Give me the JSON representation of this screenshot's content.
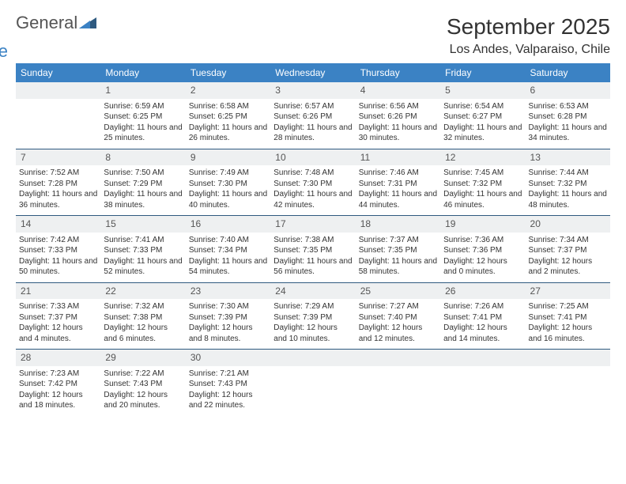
{
  "brand": {
    "part1": "General",
    "part2": "Blue",
    "tri_color": "#2f5a80"
  },
  "title": "September 2025",
  "location": "Los Andes, Valparaiso, Chile",
  "colors": {
    "header_bg": "#3b82c4",
    "header_fg": "#ffffff",
    "daynum_bg": "#eef0f1",
    "rule": "#2f5a80",
    "text": "#333333"
  },
  "day_headers": [
    "Sunday",
    "Monday",
    "Tuesday",
    "Wednesday",
    "Thursday",
    "Friday",
    "Saturday"
  ],
  "weeks": [
    [
      null,
      {
        "n": "1",
        "sr": "Sunrise: 6:59 AM",
        "ss": "Sunset: 6:25 PM",
        "dl": "Daylight: 11 hours and 25 minutes."
      },
      {
        "n": "2",
        "sr": "Sunrise: 6:58 AM",
        "ss": "Sunset: 6:25 PM",
        "dl": "Daylight: 11 hours and 26 minutes."
      },
      {
        "n": "3",
        "sr": "Sunrise: 6:57 AM",
        "ss": "Sunset: 6:26 PM",
        "dl": "Daylight: 11 hours and 28 minutes."
      },
      {
        "n": "4",
        "sr": "Sunrise: 6:56 AM",
        "ss": "Sunset: 6:26 PM",
        "dl": "Daylight: 11 hours and 30 minutes."
      },
      {
        "n": "5",
        "sr": "Sunrise: 6:54 AM",
        "ss": "Sunset: 6:27 PM",
        "dl": "Daylight: 11 hours and 32 minutes."
      },
      {
        "n": "6",
        "sr": "Sunrise: 6:53 AM",
        "ss": "Sunset: 6:28 PM",
        "dl": "Daylight: 11 hours and 34 minutes."
      }
    ],
    [
      {
        "n": "7",
        "sr": "Sunrise: 7:52 AM",
        "ss": "Sunset: 7:28 PM",
        "dl": "Daylight: 11 hours and 36 minutes."
      },
      {
        "n": "8",
        "sr": "Sunrise: 7:50 AM",
        "ss": "Sunset: 7:29 PM",
        "dl": "Daylight: 11 hours and 38 minutes."
      },
      {
        "n": "9",
        "sr": "Sunrise: 7:49 AM",
        "ss": "Sunset: 7:30 PM",
        "dl": "Daylight: 11 hours and 40 minutes."
      },
      {
        "n": "10",
        "sr": "Sunrise: 7:48 AM",
        "ss": "Sunset: 7:30 PM",
        "dl": "Daylight: 11 hours and 42 minutes."
      },
      {
        "n": "11",
        "sr": "Sunrise: 7:46 AM",
        "ss": "Sunset: 7:31 PM",
        "dl": "Daylight: 11 hours and 44 minutes."
      },
      {
        "n": "12",
        "sr": "Sunrise: 7:45 AM",
        "ss": "Sunset: 7:32 PM",
        "dl": "Daylight: 11 hours and 46 minutes."
      },
      {
        "n": "13",
        "sr": "Sunrise: 7:44 AM",
        "ss": "Sunset: 7:32 PM",
        "dl": "Daylight: 11 hours and 48 minutes."
      }
    ],
    [
      {
        "n": "14",
        "sr": "Sunrise: 7:42 AM",
        "ss": "Sunset: 7:33 PM",
        "dl": "Daylight: 11 hours and 50 minutes."
      },
      {
        "n": "15",
        "sr": "Sunrise: 7:41 AM",
        "ss": "Sunset: 7:33 PM",
        "dl": "Daylight: 11 hours and 52 minutes."
      },
      {
        "n": "16",
        "sr": "Sunrise: 7:40 AM",
        "ss": "Sunset: 7:34 PM",
        "dl": "Daylight: 11 hours and 54 minutes."
      },
      {
        "n": "17",
        "sr": "Sunrise: 7:38 AM",
        "ss": "Sunset: 7:35 PM",
        "dl": "Daylight: 11 hours and 56 minutes."
      },
      {
        "n": "18",
        "sr": "Sunrise: 7:37 AM",
        "ss": "Sunset: 7:35 PM",
        "dl": "Daylight: 11 hours and 58 minutes."
      },
      {
        "n": "19",
        "sr": "Sunrise: 7:36 AM",
        "ss": "Sunset: 7:36 PM",
        "dl": "Daylight: 12 hours and 0 minutes."
      },
      {
        "n": "20",
        "sr": "Sunrise: 7:34 AM",
        "ss": "Sunset: 7:37 PM",
        "dl": "Daylight: 12 hours and 2 minutes."
      }
    ],
    [
      {
        "n": "21",
        "sr": "Sunrise: 7:33 AM",
        "ss": "Sunset: 7:37 PM",
        "dl": "Daylight: 12 hours and 4 minutes."
      },
      {
        "n": "22",
        "sr": "Sunrise: 7:32 AM",
        "ss": "Sunset: 7:38 PM",
        "dl": "Daylight: 12 hours and 6 minutes."
      },
      {
        "n": "23",
        "sr": "Sunrise: 7:30 AM",
        "ss": "Sunset: 7:39 PM",
        "dl": "Daylight: 12 hours and 8 minutes."
      },
      {
        "n": "24",
        "sr": "Sunrise: 7:29 AM",
        "ss": "Sunset: 7:39 PM",
        "dl": "Daylight: 12 hours and 10 minutes."
      },
      {
        "n": "25",
        "sr": "Sunrise: 7:27 AM",
        "ss": "Sunset: 7:40 PM",
        "dl": "Daylight: 12 hours and 12 minutes."
      },
      {
        "n": "26",
        "sr": "Sunrise: 7:26 AM",
        "ss": "Sunset: 7:41 PM",
        "dl": "Daylight: 12 hours and 14 minutes."
      },
      {
        "n": "27",
        "sr": "Sunrise: 7:25 AM",
        "ss": "Sunset: 7:41 PM",
        "dl": "Daylight: 12 hours and 16 minutes."
      }
    ],
    [
      {
        "n": "28",
        "sr": "Sunrise: 7:23 AM",
        "ss": "Sunset: 7:42 PM",
        "dl": "Daylight: 12 hours and 18 minutes."
      },
      {
        "n": "29",
        "sr": "Sunrise: 7:22 AM",
        "ss": "Sunset: 7:43 PM",
        "dl": "Daylight: 12 hours and 20 minutes."
      },
      {
        "n": "30",
        "sr": "Sunrise: 7:21 AM",
        "ss": "Sunset: 7:43 PM",
        "dl": "Daylight: 12 hours and 22 minutes."
      },
      null,
      null,
      null,
      null
    ]
  ]
}
